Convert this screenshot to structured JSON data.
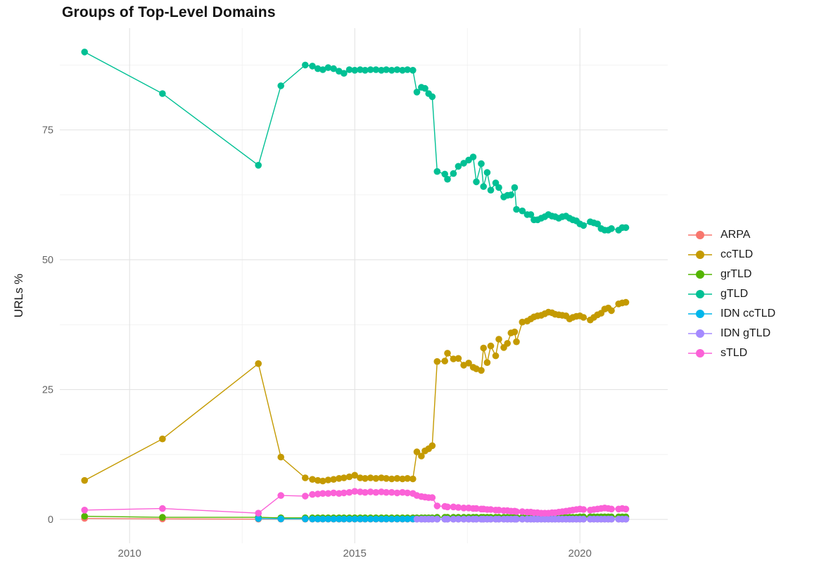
{
  "page": {
    "title": "Groups of Top-Level Domains"
  },
  "chart_data": {
    "type": "line",
    "title": "Groups of Top-Level Domains",
    "xlabel": "",
    "ylabel": "URLs %",
    "grid": true,
    "legend_position": "right",
    "x_domain": [
      2008.45,
      2021.95
    ],
    "y_domain": [
      -4.6,
      94.6
    ],
    "x_major_ticks": [
      2010,
      2015,
      2020
    ],
    "x_minor_ticks": [
      2012.5,
      2017.5
    ],
    "y_major_ticks": [
      0,
      25,
      50,
      75
    ],
    "y_minor_ticks": [
      12.5,
      37.5,
      62.5,
      87.5
    ],
    "x": [
      2009.0,
      2010.73,
      2012.86,
      2013.36,
      2013.9,
      2014.06,
      2014.18,
      2014.29,
      2014.41,
      2014.53,
      2014.65,
      2014.76,
      2014.88,
      2015.0,
      2015.12,
      2015.23,
      2015.35,
      2015.47,
      2015.59,
      2015.7,
      2015.82,
      2015.94,
      2016.06,
      2016.17,
      2016.29,
      2016.38,
      2016.48,
      2016.56,
      2016.64,
      2016.72,
      2016.83,
      2017.0,
      2017.06,
      2017.19,
      2017.3,
      2017.42,
      2017.53,
      2017.63,
      2017.7,
      2017.81,
      2017.86,
      2017.94,
      2018.02,
      2018.13,
      2018.2,
      2018.31,
      2018.39,
      2018.47,
      2018.55,
      2018.59,
      2018.72,
      2018.83,
      2018.91,
      2018.98,
      2019.06,
      2019.14,
      2019.22,
      2019.3,
      2019.38,
      2019.45,
      2019.53,
      2019.61,
      2019.69,
      2019.77,
      2019.84,
      2019.92,
      2020.0,
      2020.08,
      2020.23,
      2020.31,
      2020.39,
      2020.47,
      2020.55,
      2020.63,
      2020.7,
      2020.86,
      2020.94,
      2021.02
    ],
    "series": [
      {
        "name": "ARPA",
        "color": "#F8766D",
        "y": [
          0.2,
          0.1,
          0.05,
          0.05,
          0.05,
          0.05,
          0.05,
          0.05,
          0.05,
          0.05,
          0.05,
          0.05,
          0.05,
          0.05,
          0.05,
          0.05,
          0.05,
          0.05,
          0.05,
          0.05,
          0.05,
          0.05,
          0.05,
          0.05,
          0.05,
          0.05,
          0.05,
          0.05,
          0.05,
          0.05,
          0.05,
          0.05,
          0.05,
          0.05,
          0.05,
          0.05,
          0.05,
          0.05,
          0.05,
          0.05,
          0.05,
          0.05,
          0.05,
          0.05,
          0.05,
          0.05,
          0.05,
          0.05,
          0.05,
          0.05,
          0.05,
          0.05,
          0.05,
          0.05,
          0.05,
          0.05,
          0.05,
          0.05,
          0.05,
          0.05,
          0.05,
          0.05,
          0.05,
          0.05,
          0.05,
          0.05,
          0.05,
          0.05,
          0.05,
          0.05,
          0.05,
          0.05,
          0.05,
          0.05,
          0.05,
          0.05,
          0.05,
          0.05
        ]
      },
      {
        "name": "ccTLD",
        "color": "#C49A00",
        "y": [
          7.5,
          15.5,
          30,
          12,
          8,
          7.7,
          7.5,
          7.4,
          7.6,
          7.7,
          7.9,
          8,
          8.2,
          8.5,
          8,
          7.9,
          8,
          7.9,
          8,
          7.9,
          7.8,
          7.9,
          7.8,
          7.9,
          7.8,
          13,
          12.2,
          13.2,
          13.6,
          14.2,
          30.4,
          30.5,
          32,
          30.9,
          31,
          29.7,
          30.1,
          29.3,
          29,
          28.7,
          33,
          30.2,
          33.4,
          31.5,
          34.7,
          33.1,
          33.9,
          35.9,
          36.1,
          34.2,
          38,
          38.2,
          38.6,
          39,
          39.2,
          39.3,
          39.6,
          39.9,
          39.8,
          39.5,
          39.4,
          39.3,
          39.2,
          38.6,
          38.9,
          39.1,
          39.2,
          38.9,
          38.4,
          38.9,
          39.4,
          39.7,
          40.5,
          40.7,
          40.2,
          41.5,
          41.7,
          41.8
        ]
      },
      {
        "name": "grTLD",
        "color": "#53B400",
        "y": [
          0.6,
          0.4,
          0.4,
          0.3,
          0.3,
          0.3,
          0.3,
          0.3,
          0.3,
          0.3,
          0.3,
          0.3,
          0.3,
          0.3,
          0.3,
          0.3,
          0.3,
          0.3,
          0.3,
          0.3,
          0.3,
          0.3,
          0.3,
          0.3,
          0.3,
          0.3,
          0.3,
          0.3,
          0.3,
          0.3,
          0.4,
          0.4,
          0.4,
          0.4,
          0.4,
          0.4,
          0.4,
          0.4,
          0.4,
          0.4,
          0.4,
          0.4,
          0.4,
          0.4,
          0.4,
          0.4,
          0.4,
          0.4,
          0.4,
          0.4,
          0.4,
          0.4,
          0.4,
          0.4,
          0.4,
          0.4,
          0.4,
          0.4,
          0.4,
          0.4,
          0.4,
          0.4,
          0.4,
          0.4,
          0.4,
          0.4,
          0.5,
          0.5,
          0.5,
          0.5,
          0.5,
          0.5,
          0.5,
          0.5,
          0.5,
          0.5,
          0.5,
          0.5
        ]
      },
      {
        "name": "gTLD",
        "color": "#00C094",
        "y": [
          90,
          82,
          68.2,
          83.5,
          87.5,
          87.3,
          86.8,
          86.6,
          87,
          86.8,
          86.3,
          85.9,
          86.6,
          86.5,
          86.6,
          86.5,
          86.6,
          86.6,
          86.5,
          86.6,
          86.5,
          86.6,
          86.5,
          86.6,
          86.5,
          82.3,
          83.2,
          83,
          82,
          81.4,
          67,
          66.5,
          65.5,
          66.6,
          68,
          68.6,
          69.2,
          69.8,
          65,
          68.5,
          64.1,
          66.8,
          63.4,
          64.8,
          63.9,
          62.1,
          62.4,
          62.5,
          63.9,
          59.7,
          59.4,
          58.7,
          58.7,
          57.7,
          57.7,
          58,
          58.3,
          58.7,
          58.4,
          58.3,
          58,
          58.3,
          58.4,
          58,
          57.7,
          57.5,
          56.9,
          56.6,
          57.3,
          57.1,
          56.9,
          56,
          55.7,
          55.7,
          56,
          55.7,
          56.2,
          56.2
        ]
      },
      {
        "name": "IDN ccTLD",
        "color": "#00B6EB",
        "y": [
          null,
          null,
          0.15,
          0.1,
          0.1,
          0.08,
          0.08,
          0.08,
          0.08,
          0.08,
          0.08,
          0.08,
          0.08,
          0.08,
          0.08,
          0.08,
          0.08,
          0.08,
          0.08,
          0.08,
          0.08,
          0.08,
          0.08,
          0.08,
          0.08,
          0.08,
          0.08,
          0.08,
          0.08,
          0.08,
          0.08,
          0.08,
          0.08,
          0.08,
          0.08,
          0.08,
          0.08,
          0.08,
          0.08,
          0.08,
          0.08,
          0.08,
          0.08,
          0.08,
          0.08,
          0.08,
          0.08,
          0.08,
          0.08,
          0.08,
          0.08,
          0.08,
          0.08,
          0.08,
          0.08,
          0.08,
          0.08,
          0.08,
          0.08,
          0.08,
          0.08,
          0.08,
          0.08,
          0.08,
          0.08,
          0.08,
          0.08,
          0.08,
          0.08,
          0.08,
          0.08,
          0.08,
          0.08,
          0.08,
          0.08,
          0.08,
          0.08,
          0.08
        ]
      },
      {
        "name": "IDN gTLD",
        "color": "#A58AFF",
        "y": [
          null,
          null,
          null,
          null,
          null,
          null,
          null,
          null,
          null,
          null,
          null,
          null,
          null,
          null,
          null,
          null,
          null,
          null,
          null,
          null,
          null,
          null,
          null,
          null,
          null,
          0.05,
          0.05,
          0.05,
          0.05,
          0.05,
          0.05,
          0.05,
          0.05,
          0.05,
          0.05,
          0.05,
          0.05,
          0.05,
          0.05,
          0.05,
          0.05,
          0.05,
          0.05,
          0.05,
          0.05,
          0.05,
          0.05,
          0.05,
          0.05,
          0.05,
          0.05,
          0.05,
          0.05,
          0.05,
          0.05,
          0.05,
          0.05,
          0.05,
          0.05,
          0.05,
          0.05,
          0.05,
          0.05,
          0.05,
          0.05,
          0.05,
          0.05,
          0.05,
          0.05,
          0.05,
          0.05,
          0.05,
          0.05,
          0.05,
          0.05,
          0.05,
          0.05,
          0.05
        ]
      },
      {
        "name": "sTLD",
        "color": "#FB61D7",
        "y": [
          1.8,
          2.1,
          1.2,
          4.6,
          4.5,
          4.8,
          4.9,
          5,
          5,
          5.1,
          5,
          5.1,
          5.2,
          5.4,
          5.3,
          5.2,
          5.3,
          5.2,
          5.3,
          5.2,
          5.2,
          5.1,
          5.2,
          5.1,
          5,
          4.6,
          4.4,
          4.3,
          4.2,
          4.2,
          2.6,
          2.5,
          2.4,
          2.4,
          2.3,
          2.2,
          2.2,
          2.1,
          2.1,
          2,
          2,
          1.9,
          1.9,
          1.8,
          1.8,
          1.7,
          1.7,
          1.6,
          1.6,
          1.5,
          1.5,
          1.4,
          1.4,
          1.3,
          1.3,
          1.2,
          1.2,
          1.2,
          1.3,
          1.3,
          1.4,
          1.5,
          1.6,
          1.7,
          1.8,
          1.9,
          2,
          1.9,
          1.8,
          1.9,
          2,
          2.1,
          2.2,
          2.1,
          2,
          2,
          2.1,
          2
        ]
      }
    ],
    "style": {
      "grid_major_color": "#E3E3E3",
      "grid_minor_color": "#EFEFEF",
      "tick_label_color": "#666666",
      "point_radius": 4.8,
      "line_width": 1.4
    }
  }
}
